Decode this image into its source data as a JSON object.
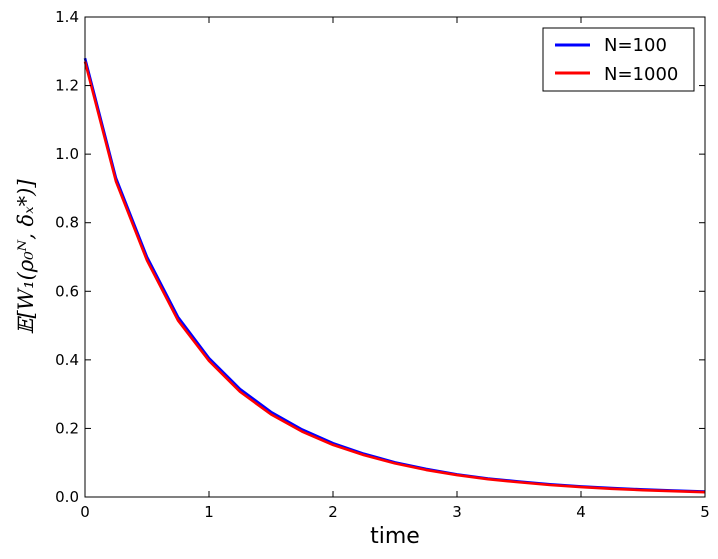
{
  "chart_data": {
    "type": "line",
    "xlabel": "time",
    "ylabel": "𝔼[W₁(ρ₀ᴺ, δₓ*)]",
    "xlim": [
      0,
      5
    ],
    "ylim": [
      0,
      1.4
    ],
    "xticks": [
      0,
      1,
      2,
      3,
      4,
      5
    ],
    "xtick_labels": [
      "0",
      "1",
      "2",
      "3",
      "4",
      "5"
    ],
    "yticks": [
      0,
      0.2,
      0.4,
      0.6,
      0.8,
      1.0,
      1.2,
      1.4
    ],
    "ytick_labels": [
      "0.0",
      "0.2",
      "0.4",
      "0.6",
      "0.8",
      "1.0",
      "1.2",
      "1.4"
    ],
    "grid": false,
    "legend_position": "top-right",
    "x": [
      0,
      0.25,
      0.5,
      0.75,
      1.0,
      1.25,
      1.5,
      1.75,
      2.0,
      2.25,
      2.5,
      2.75,
      3.0,
      3.25,
      3.5,
      3.75,
      4.0,
      4.25,
      4.5,
      4.75,
      5.0
    ],
    "series": [
      {
        "name": "N=100",
        "color": "#0000ff",
        "values": [
          1.28,
          0.93,
          0.7,
          0.525,
          0.405,
          0.315,
          0.248,
          0.197,
          0.157,
          0.126,
          0.101,
          0.082,
          0.066,
          0.054,
          0.045,
          0.037,
          0.031,
          0.026,
          0.022,
          0.019,
          0.016
        ]
      },
      {
        "name": "N=1000",
        "color": "#ff0000",
        "values": [
          1.27,
          0.92,
          0.69,
          0.515,
          0.397,
          0.307,
          0.241,
          0.191,
          0.152,
          0.122,
          0.098,
          0.079,
          0.064,
          0.052,
          0.043,
          0.035,
          0.029,
          0.024,
          0.02,
          0.017,
          0.014
        ]
      }
    ]
  }
}
